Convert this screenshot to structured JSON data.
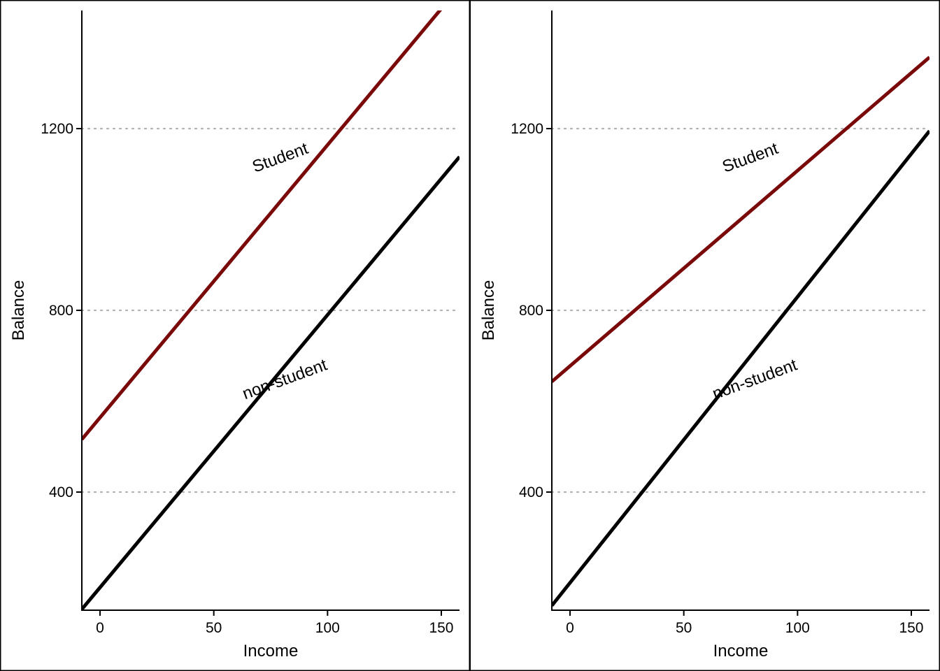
{
  "chart_data": [
    {
      "type": "line",
      "xlabel": "Income",
      "ylabel": "Balance",
      "xlim": [
        -8,
        158
      ],
      "ylim": [
        140,
        1460
      ],
      "xticks": [
        0,
        50,
        100,
        150
      ],
      "yticks": [
        400,
        800,
        1200
      ],
      "grid": "horizontal dotted at y ticks",
      "series": [
        {
          "name": "Student",
          "color": "#7a0a0a",
          "intercept": 564,
          "slope": 6.0,
          "x": [
            -8,
            158
          ],
          "y": [
            516,
            1512
          ]
        },
        {
          "name": "non-student",
          "color": "#000000",
          "intercept": 190,
          "slope": 6.0,
          "x": [
            -8,
            158
          ],
          "y": [
            142,
            1138
          ]
        }
      ],
      "annotations": [
        {
          "text": "Student",
          "series": "Student",
          "x": 80,
          "y": 1125,
          "angle": -20
        },
        {
          "text": "non-student",
          "series": "non-student",
          "x": 82,
          "y": 637,
          "angle": -20
        }
      ]
    },
    {
      "type": "line",
      "xlabel": "Income",
      "ylabel": "Balance",
      "xlim": [
        -8,
        158
      ],
      "ylim": [
        140,
        1460
      ],
      "xticks": [
        0,
        50,
        100,
        150
      ],
      "yticks": [
        400,
        800,
        1200
      ],
      "grid": "horizontal dotted at y ticks",
      "series": [
        {
          "name": "Student",
          "color": "#7a0a0a",
          "intercept": 677,
          "slope": 4.3,
          "x": [
            -8,
            158
          ],
          "y": [
            643,
            1357
          ]
        },
        {
          "name": "non-student",
          "color": "#000000",
          "intercept": 200,
          "slope": 6.3,
          "x": [
            -8,
            158
          ],
          "y": [
            150,
            1195
          ]
        }
      ],
      "annotations": [
        {
          "text": "Student",
          "series": "Student",
          "x": 80,
          "y": 1125,
          "angle": -20
        },
        {
          "text": "non-student",
          "series": "non-student",
          "x": 82,
          "y": 637,
          "angle": -20
        }
      ]
    }
  ]
}
